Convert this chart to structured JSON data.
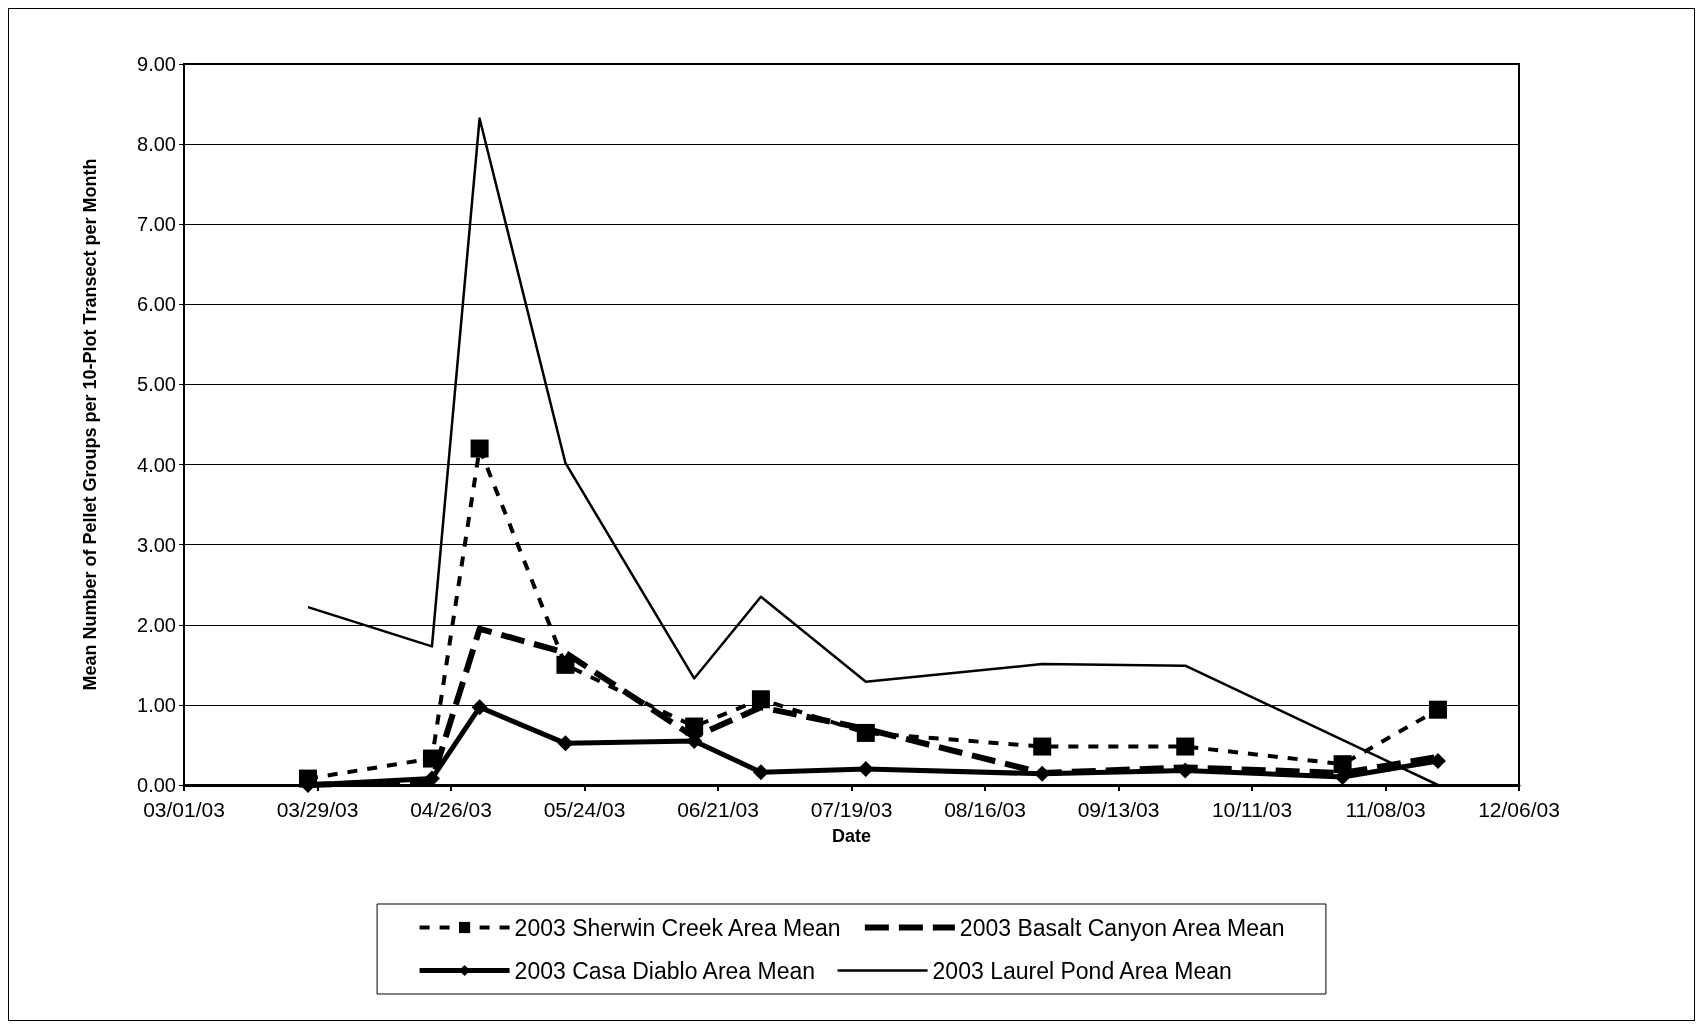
{
  "chart_data": {
    "type": "line",
    "xlabel": "Date",
    "ylabel": "Mean Number of Pellet Groups per 10-Plot Transect per Month",
    "x": [
      "2003-03-27",
      "2003-04-22",
      "2003-05-02",
      "2003-05-20",
      "2003-06-16",
      "2003-06-30",
      "2003-07-22",
      "2003-08-28",
      "2003-09-27",
      "2003-10-30",
      "2003-11-19"
    ],
    "series": [
      {
        "name": "2003 Sherwin Creek Area Mean",
        "color": "#000000",
        "marker": "square",
        "line_style": "dashed",
        "values": [
          0.08,
          0.33,
          4.2,
          1.5,
          0.73,
          1.07,
          0.65,
          0.48,
          0.48,
          0.26,
          0.94
        ]
      },
      {
        "name": "2003 Basalt Canyon Area Mean",
        "color": "#000000",
        "marker": "none",
        "line_style": "dashed",
        "values": [
          0.0,
          0.05,
          1.95,
          1.65,
          0.6,
          0.97,
          0.7,
          0.15,
          0.22,
          0.15,
          0.35
        ]
      },
      {
        "name": "2003 Casa Diablo Area Mean",
        "color": "#000000",
        "marker": "diamond",
        "line_style": "solid",
        "values": [
          0.0,
          0.08,
          0.97,
          0.52,
          0.55,
          0.16,
          0.2,
          0.14,
          0.18,
          0.1,
          0.3
        ]
      },
      {
        "name": "2003 Laurel Pond Area Mean",
        "color": "#000000",
        "marker": "none",
        "line_style": "solid",
        "x": [
          "2003-03-27",
          "2003-04-22",
          "2003-05-02",
          "2003-05-20",
          "2003-06-16",
          "2003-06-30",
          "2003-07-22",
          "2003-08-28",
          "2003-09-27",
          "2003-11-19"
        ],
        "values": [
          2.22,
          1.73,
          8.32,
          4.02,
          1.33,
          2.35,
          1.29,
          1.51,
          1.49,
          0.0
        ]
      }
    ],
    "xlim": [
      "2003-03-01",
      "2003-12-06"
    ],
    "xticks": [
      {
        "value": "2003-03-01",
        "label": "03/01/03"
      },
      {
        "value": "2003-03-29",
        "label": "03/29/03"
      },
      {
        "value": "2003-04-26",
        "label": "04/26/03"
      },
      {
        "value": "2003-05-24",
        "label": "05/24/03"
      },
      {
        "value": "2003-06-21",
        "label": "06/21/03"
      },
      {
        "value": "2003-07-19",
        "label": "07/19/03"
      },
      {
        "value": "2003-08-16",
        "label": "08/16/03"
      },
      {
        "value": "2003-09-13",
        "label": "09/13/03"
      },
      {
        "value": "2003-10-11",
        "label": "10/11/03"
      },
      {
        "value": "2003-11-08",
        "label": "11/08/03"
      },
      {
        "value": "2003-12-06",
        "label": "12/06/03"
      }
    ],
    "ylim": [
      0,
      9
    ],
    "yticks": [
      {
        "value": 0,
        "label": "0.00"
      },
      {
        "value": 1,
        "label": "1.00"
      },
      {
        "value": 2,
        "label": "2.00"
      },
      {
        "value": 3,
        "label": "3.00"
      },
      {
        "value": 4,
        "label": "4.00"
      },
      {
        "value": 5,
        "label": "5.00"
      },
      {
        "value": 6,
        "label": "6.00"
      },
      {
        "value": 7,
        "label": "7.00"
      },
      {
        "value": 8,
        "label": "8.00"
      },
      {
        "value": 9,
        "label": "9.00"
      }
    ],
    "grid": "y",
    "legend": "bottom"
  }
}
